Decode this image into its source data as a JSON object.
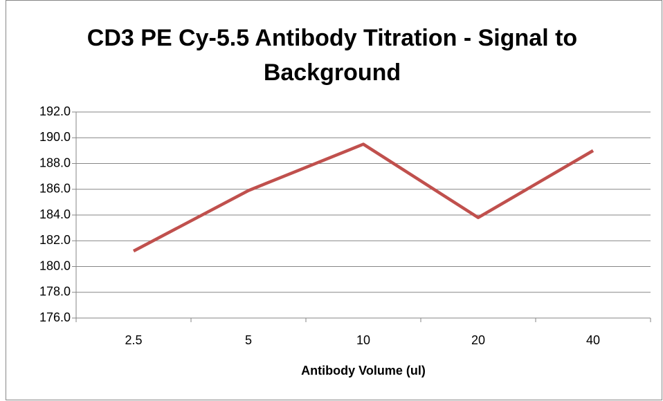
{
  "chart_data": {
    "type": "line",
    "title": "CD3 PE Cy-5.5 Antibody Titration - Signal to Background",
    "x_label": "Antibody Volume (ul)",
    "categories": [
      "2.5",
      "5",
      "10",
      "20",
      "40"
    ],
    "series": [
      {
        "color": "#c0504d",
        "values": [
          181.2,
          185.9,
          189.5,
          183.8,
          189.0
        ]
      }
    ],
    "ylim": [
      176,
      192
    ],
    "yticks": [
      {
        "value": 176,
        "label": "176.0"
      },
      {
        "value": 178,
        "label": "178.0"
      },
      {
        "value": 180,
        "label": "180.0"
      },
      {
        "value": 182,
        "label": "182.0"
      },
      {
        "value": 184,
        "label": "184.0"
      },
      {
        "value": 186,
        "label": "186.0"
      },
      {
        "value": 188,
        "label": "188.0"
      },
      {
        "value": 190,
        "label": "190.0"
      },
      {
        "value": 192,
        "label": "192.0"
      }
    ],
    "grid": true
  }
}
